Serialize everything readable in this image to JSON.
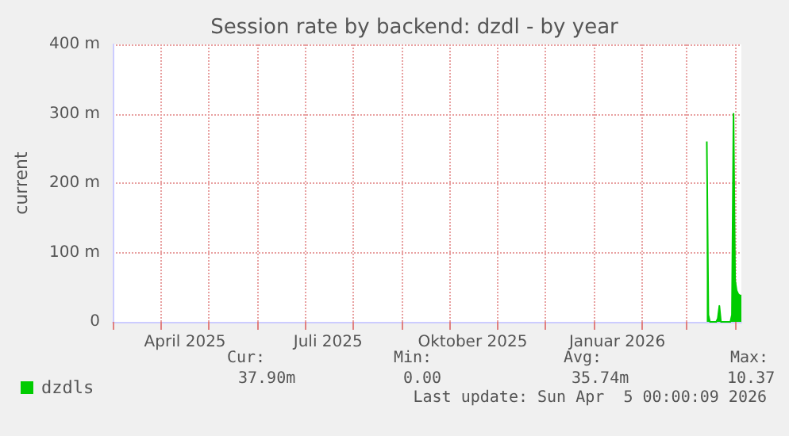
{
  "chart_data": {
    "type": "area",
    "title": "Session rate by backend: dzdl - by year",
    "ylabel": "current",
    "series": [
      {
        "name": "dzdls",
        "color": "#00cc00",
        "x": [
          "2026-03-14",
          "2026-03-15",
          "2026-03-16",
          "2026-03-20",
          "2026-03-21",
          "2026-03-22",
          "2026-03-23",
          "2026-03-29",
          "2026-03-30",
          "2026-03-31",
          "2026-04-01",
          "2026-04-02",
          "2026-04-03",
          "2026-04-04",
          "2026-04-05"
        ],
        "values": [
          260,
          10,
          0,
          0,
          5,
          23,
          0,
          0,
          10,
          300,
          60,
          45,
          40,
          38,
          38
        ]
      }
    ],
    "xlim": [
      "2025-03-01",
      "2026-04-05"
    ],
    "xticks": [
      {
        "value": "2025-03-01",
        "label": null
      },
      {
        "value": "2025-04-01",
        "label": null
      },
      {
        "value": "2025-04-16",
        "label": "April 2025"
      },
      {
        "value": "2025-05-01",
        "label": null
      },
      {
        "value": "2025-06-01",
        "label": null
      },
      {
        "value": "2025-07-01",
        "label": null
      },
      {
        "value": "2025-07-16",
        "label": "Juli 2025"
      },
      {
        "value": "2025-08-01",
        "label": null
      },
      {
        "value": "2025-09-01",
        "label": null
      },
      {
        "value": "2025-10-01",
        "label": null
      },
      {
        "value": "2025-10-16",
        "label": "Oktober 2025"
      },
      {
        "value": "2025-11-01",
        "label": null
      },
      {
        "value": "2025-12-01",
        "label": null
      },
      {
        "value": "2026-01-01",
        "label": null
      },
      {
        "value": "2026-01-16",
        "label": "Januar 2026"
      },
      {
        "value": "2026-02-01",
        "label": null
      },
      {
        "value": "2026-03-01",
        "label": null
      },
      {
        "value": "2026-04-01",
        "label": null
      }
    ],
    "ylim": [
      0,
      400
    ],
    "yticks": [
      0,
      {
        "value": 100,
        "label": "100 m"
      },
      {
        "value": 200,
        "label": "200 m"
      },
      {
        "value": 300,
        "label": "300 m"
      },
      {
        "value": 400,
        "label": "400 m"
      }
    ],
    "grid": true,
    "legend": "bottom left",
    "annotations": [
      "Cur:",
      "Min:",
      "Avg:",
      "Max:",
      "37.90m",
      "0.00",
      "35.74m",
      "10.37",
      "Last update: Sun Apr  5 00:00:09 2026"
    ]
  }
}
